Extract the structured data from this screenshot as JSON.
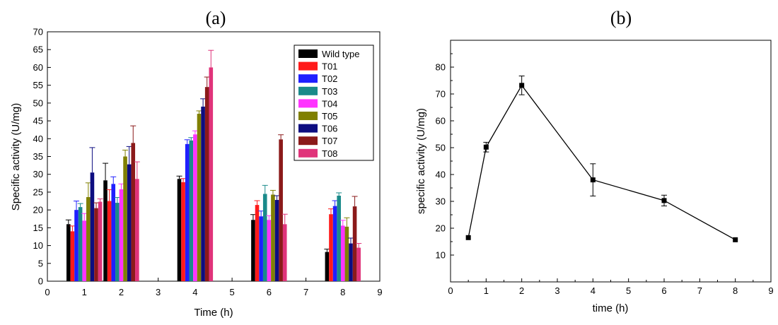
{
  "chart_data": [
    {
      "type": "bar",
      "panel_label": "(a)",
      "xlabel": "Time (h)",
      "ylabel": "Specific activity (U/mg)",
      "xlim": [
        0,
        9
      ],
      "ylim": [
        0,
        70
      ],
      "x_ticks": [
        0,
        1,
        2,
        3,
        4,
        5,
        6,
        7,
        8,
        9
      ],
      "y_ticks": [
        0,
        5,
        10,
        15,
        20,
        25,
        30,
        35,
        40,
        45,
        50,
        55,
        60,
        65,
        70
      ],
      "x": [
        1,
        2,
        4,
        6,
        8
      ],
      "legend_position": "top-right",
      "grid": false,
      "series": [
        {
          "name": "Wild type",
          "color": "#000000",
          "values": [
            16,
            28.3,
            28.7,
            17.2,
            8.2
          ],
          "errors": [
            1.2,
            4.8,
            0.8,
            1.5,
            0.8
          ]
        },
        {
          "name": "T01",
          "color": "#ff1a1a",
          "values": [
            14,
            22.5,
            27.8,
            21.4,
            18.8
          ],
          "errors": [
            1.5,
            3.2,
            1.0,
            1.2,
            1.5
          ]
        },
        {
          "name": "T02",
          "color": "#1f1fff",
          "values": [
            20,
            27.3,
            38.5,
            18.2,
            21.1
          ],
          "errors": [
            2.5,
            2.0,
            1.2,
            1.5,
            1.5
          ]
        },
        {
          "name": "T03",
          "color": "#1a8a8a",
          "values": [
            20.8,
            22,
            39.5,
            24.5,
            24
          ],
          "errors": [
            1.0,
            1.5,
            0.8,
            2.4,
            0.8
          ]
        },
        {
          "name": "T04",
          "color": "#ff33ff",
          "values": [
            17,
            25.8,
            41.2,
            17.2,
            15.6
          ],
          "errors": [
            2.0,
            1.5,
            1.0,
            1.2,
            1.5
          ]
        },
        {
          "name": "T05",
          "color": "#808000",
          "values": [
            23.6,
            35,
            47,
            24.3,
            15.3
          ],
          "errors": [
            4.0,
            1.8,
            0.8,
            1.2,
            2.5
          ]
        },
        {
          "name": "T06",
          "color": "#0d0d80",
          "values": [
            30.5,
            32.8,
            49,
            22.8,
            10.6
          ],
          "errors": [
            7.0,
            5.0,
            2.2,
            1.2,
            1.5
          ]
        },
        {
          "name": "T07",
          "color": "#8b1a1a",
          "values": [
            20.5,
            38.8,
            54.5,
            39.8,
            21
          ],
          "errors": [
            1.5,
            4.8,
            2.8,
            1.3,
            2.8
          ]
        },
        {
          "name": "T08",
          "color": "#e0337a",
          "values": [
            22.3,
            28.7,
            60,
            16,
            9.4
          ],
          "errors": [
            0.8,
            4.8,
            4.8,
            2.8,
            1.2
          ]
        }
      ]
    },
    {
      "type": "line",
      "panel_label": "(b)",
      "xlabel": "time (h)",
      "ylabel": "specific activity (U/mg)",
      "xlim": [
        0,
        9
      ],
      "ylim": [
        0,
        90
      ],
      "x_ticks": [
        0,
        1,
        2,
        3,
        4,
        5,
        6,
        7,
        8,
        9
      ],
      "y_ticks": [
        10,
        20,
        30,
        40,
        50,
        60,
        70,
        80
      ],
      "grid": false,
      "series": [
        {
          "color": "#000000",
          "x": [
            0.5,
            1,
            2,
            4,
            6,
            8
          ],
          "values": [
            16.5,
            50.2,
            73.2,
            38,
            30.3,
            15.7
          ],
          "errors": [
            0,
            1.8,
            3.5,
            6,
            2,
            0
          ]
        }
      ]
    }
  ]
}
